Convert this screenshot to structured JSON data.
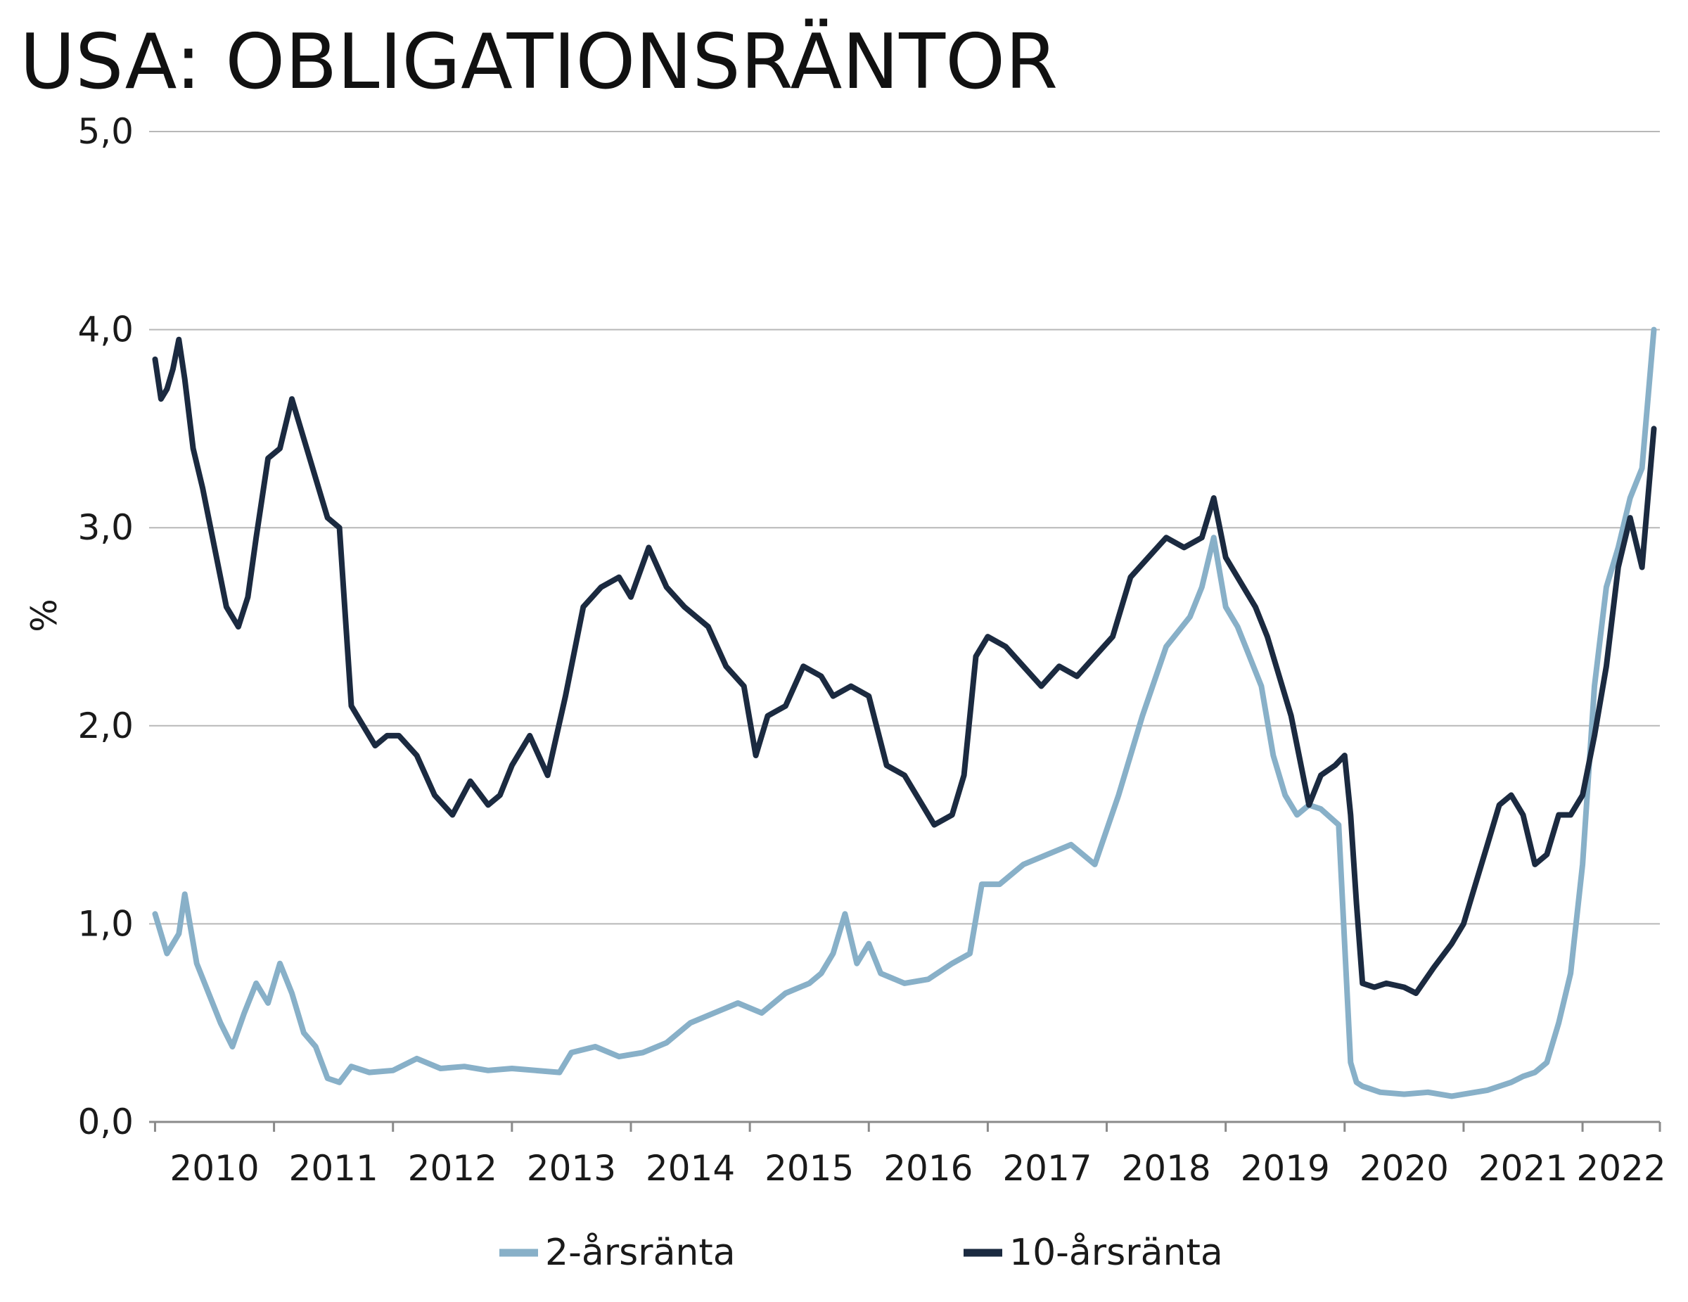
{
  "chart_data": {
    "type": "line",
    "title": "USA: OBLIGATIONSRÄNTOR",
    "ylabel": "%",
    "xlabel": "",
    "ylim": [
      0,
      5
    ],
    "xlim": [
      2009.95,
      2022.65
    ],
    "y_ticks": [
      0,
      1,
      2,
      3,
      4,
      5
    ],
    "y_tick_labels": [
      "0,0",
      "1,0",
      "2,0",
      "3,0",
      "4,0",
      "5,0"
    ],
    "x_tick_labels": [
      "2010",
      "2011",
      "2012",
      "2013",
      "2014",
      "2015",
      "2016",
      "2017",
      "2018",
      "2019",
      "2020",
      "2021",
      "2022"
    ],
    "grid": "horizontal",
    "legend_position": "bottom",
    "colors": {
      "two_year": "#88b0c8",
      "ten_year": "#1b2a40",
      "grid": "#b8b8b8",
      "axis": "#8a8a8a"
    },
    "series": [
      {
        "name": "2-årsränta",
        "color": "#88b0c8",
        "x": [
          2010.0,
          2010.1,
          2010.2,
          2010.25,
          2010.35,
          2010.45,
          2010.55,
          2010.65,
          2010.75,
          2010.85,
          2010.95,
          2011.05,
          2011.15,
          2011.25,
          2011.35,
          2011.45,
          2011.55,
          2011.65,
          2011.8,
          2012.0,
          2012.2,
          2012.4,
          2012.6,
          2012.8,
          2013.0,
          2013.2,
          2013.4,
          2013.5,
          2013.7,
          2013.9,
          2014.1,
          2014.3,
          2014.5,
          2014.7,
          2014.9,
          2015.1,
          2015.3,
          2015.5,
          2015.6,
          2015.7,
          2015.8,
          2015.9,
          2016.0,
          2016.1,
          2016.3,
          2016.5,
          2016.7,
          2016.85,
          2016.95,
          2017.1,
          2017.3,
          2017.5,
          2017.7,
          2017.9,
          2018.1,
          2018.3,
          2018.5,
          2018.7,
          2018.8,
          2018.9,
          2019.0,
          2019.1,
          2019.2,
          2019.3,
          2019.4,
          2019.5,
          2019.6,
          2019.7,
          2019.8,
          2019.95,
          2020.05,
          2020.1,
          2020.15,
          2020.2,
          2020.3,
          2020.5,
          2020.7,
          2020.9,
          2021.0,
          2021.2,
          2021.4,
          2021.5,
          2021.6,
          2021.7,
          2021.8,
          2021.9,
          2022.0,
          2022.1,
          2022.2,
          2022.3,
          2022.4,
          2022.5,
          2022.6
        ],
        "y": [
          1.05,
          0.85,
          0.95,
          1.15,
          0.8,
          0.65,
          0.5,
          0.38,
          0.55,
          0.7,
          0.6,
          0.8,
          0.65,
          0.45,
          0.38,
          0.22,
          0.2,
          0.28,
          0.25,
          0.26,
          0.32,
          0.27,
          0.28,
          0.26,
          0.27,
          0.26,
          0.25,
          0.35,
          0.38,
          0.33,
          0.35,
          0.4,
          0.5,
          0.55,
          0.6,
          0.55,
          0.65,
          0.7,
          0.75,
          0.85,
          1.05,
          0.8,
          0.9,
          0.75,
          0.7,
          0.72,
          0.8,
          0.85,
          1.2,
          1.2,
          1.3,
          1.35,
          1.4,
          1.3,
          1.65,
          2.05,
          2.4,
          2.55,
          2.7,
          2.95,
          2.6,
          2.5,
          2.35,
          2.2,
          1.85,
          1.65,
          1.55,
          1.6,
          1.58,
          1.5,
          0.3,
          0.2,
          0.18,
          0.17,
          0.15,
          0.14,
          0.15,
          0.13,
          0.14,
          0.16,
          0.2,
          0.23,
          0.25,
          0.3,
          0.5,
          0.75,
          1.3,
          2.2,
          2.7,
          2.9,
          3.15,
          3.3,
          4.0
        ]
      },
      {
        "name": "10-årsränta",
        "color": "#1b2a40",
        "x": [
          2010.0,
          2010.05,
          2010.1,
          2010.15,
          2010.2,
          2010.25,
          2010.32,
          2010.4,
          2010.5,
          2010.6,
          2010.7,
          2010.78,
          2010.85,
          2010.95,
          2011.05,
          2011.15,
          2011.25,
          2011.35,
          2011.45,
          2011.55,
          2011.65,
          2011.75,
          2011.85,
          2011.95,
          2012.05,
          2012.2,
          2012.35,
          2012.5,
          2012.65,
          2012.8,
          2012.9,
          2013.0,
          2013.15,
          2013.3,
          2013.45,
          2013.6,
          2013.75,
          2013.9,
          2014.0,
          2014.15,
          2014.3,
          2014.45,
          2014.55,
          2014.65,
          2014.8,
          2014.95,
          2015.05,
          2015.15,
          2015.3,
          2015.45,
          2015.6,
          2015.7,
          2015.85,
          2016.0,
          2016.15,
          2016.3,
          2016.45,
          2016.55,
          2016.7,
          2016.8,
          2016.9,
          2017.0,
          2017.15,
          2017.3,
          2017.45,
          2017.6,
          2017.75,
          2017.9,
          2018.05,
          2018.2,
          2018.35,
          2018.5,
          2018.65,
          2018.8,
          2018.9,
          2019.0,
          2019.15,
          2019.25,
          2019.35,
          2019.45,
          2019.55,
          2019.7,
          2019.8,
          2019.92,
          2020.0,
          2020.05,
          2020.1,
          2020.15,
          2020.25,
          2020.35,
          2020.5,
          2020.6,
          2020.75,
          2020.9,
          2021.0,
          2021.1,
          2021.2,
          2021.3,
          2021.4,
          2021.5,
          2021.6,
          2021.7,
          2021.8,
          2021.9,
          2022.0,
          2022.1,
          2022.2,
          2022.3,
          2022.4,
          2022.5,
          2022.6
        ],
        "y": [
          3.85,
          3.65,
          3.7,
          3.8,
          3.95,
          3.75,
          3.4,
          3.2,
          2.9,
          2.6,
          2.5,
          2.65,
          2.95,
          3.35,
          3.4,
          3.65,
          3.45,
          3.25,
          3.05,
          3.0,
          2.1,
          2.0,
          1.9,
          1.95,
          1.95,
          1.85,
          1.65,
          1.55,
          1.72,
          1.6,
          1.65,
          1.8,
          1.95,
          1.75,
          2.15,
          2.6,
          2.7,
          2.75,
          2.65,
          2.9,
          2.7,
          2.6,
          2.55,
          2.5,
          2.3,
          2.2,
          1.85,
          2.05,
          2.1,
          2.3,
          2.25,
          2.15,
          2.2,
          2.15,
          1.8,
          1.75,
          1.6,
          1.5,
          1.55,
          1.75,
          2.35,
          2.45,
          2.4,
          2.3,
          2.2,
          2.3,
          2.25,
          2.35,
          2.45,
          2.75,
          2.85,
          2.95,
          2.9,
          2.95,
          3.15,
          2.85,
          2.7,
          2.6,
          2.45,
          2.25,
          2.05,
          1.6,
          1.75,
          1.8,
          1.85,
          1.55,
          1.1,
          0.7,
          0.68,
          0.7,
          0.68,
          0.65,
          0.78,
          0.9,
          1.0,
          1.2,
          1.4,
          1.6,
          1.65,
          1.55,
          1.3,
          1.35,
          1.55,
          1.55,
          1.65,
          1.95,
          2.3,
          2.8,
          3.05,
          2.8,
          3.5
        ]
      }
    ]
  }
}
